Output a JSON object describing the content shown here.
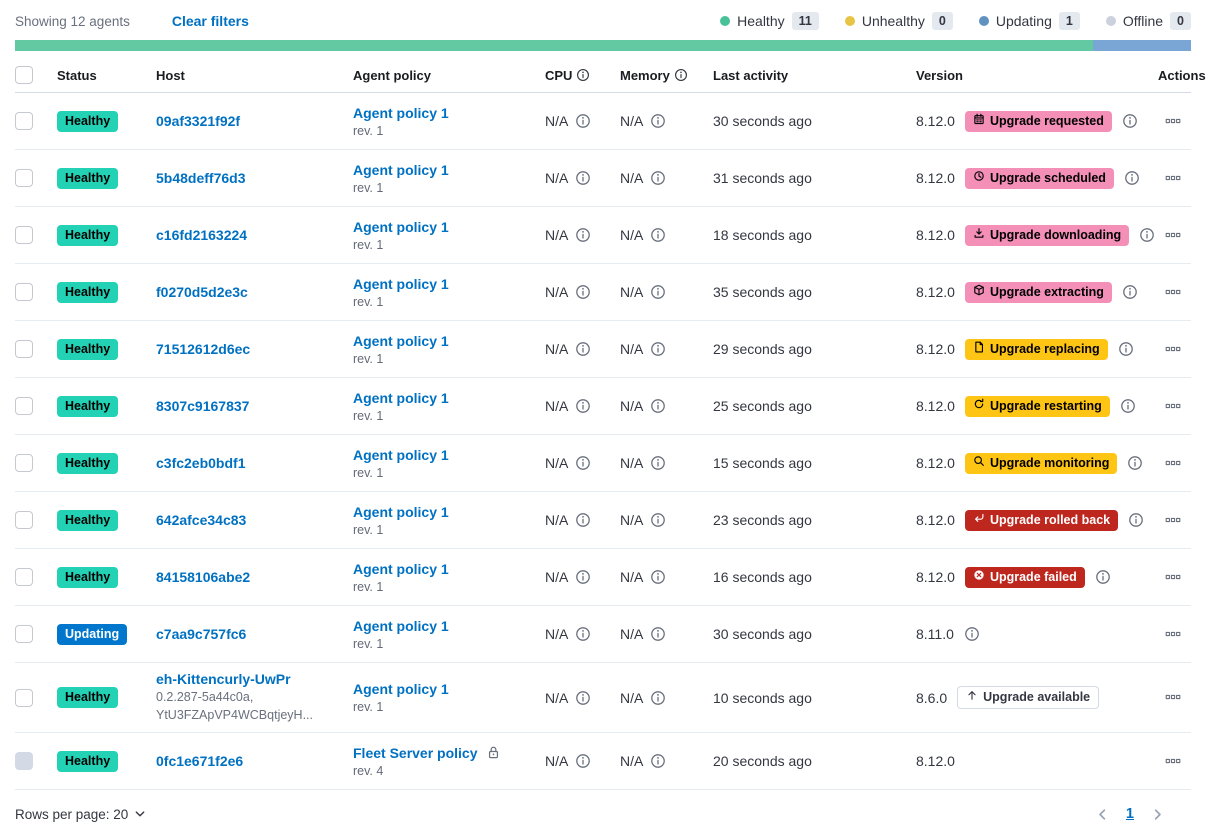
{
  "toolbar": {
    "showing_text": "Showing 12 agents",
    "clear_filters_label": "Clear filters",
    "legend": [
      {
        "label": "Healthy",
        "count": "11",
        "color": "#48c199"
      },
      {
        "label": "Unhealthy",
        "count": "0",
        "color": "#e8c444"
      },
      {
        "label": "Updating",
        "count": "1",
        "color": "#6092c0"
      },
      {
        "label": "Offline",
        "count": "0",
        "color": "#cbd1dd"
      }
    ]
  },
  "health_bar": {
    "segments": [
      {
        "status": "healthy",
        "color": "#62c9a2",
        "fraction": 11
      },
      {
        "status": "updating",
        "color": "#79a6d4",
        "fraction": 1
      }
    ]
  },
  "table": {
    "columns": [
      {
        "label": "Status"
      },
      {
        "label": "Host"
      },
      {
        "label": "Agent policy"
      },
      {
        "label": "CPU",
        "info_icon": true
      },
      {
        "label": "Memory",
        "info_icon": true
      },
      {
        "label": "Last activity"
      },
      {
        "label": "Version"
      },
      {
        "label": "Actions"
      }
    ],
    "rows": [
      {
        "status": {
          "label": "Healthy",
          "type": "healthy"
        },
        "checkbox_disabled": false,
        "host": {
          "name": "09af3321f92f",
          "sub_lines": []
        },
        "policy": {
          "name": "Agent policy 1",
          "revision": "rev. 1",
          "locked": false
        },
        "cpu": "N/A",
        "memory": "N/A",
        "last_activity": "30 seconds ago",
        "version": "8.12.0",
        "upgrade": {
          "label": "Upgrade requested",
          "icon": "calendar-icon",
          "type": "accent"
        },
        "version_info_icon": true
      },
      {
        "status": {
          "label": "Healthy",
          "type": "healthy"
        },
        "checkbox_disabled": false,
        "host": {
          "name": "5b48deff76d3",
          "sub_lines": []
        },
        "policy": {
          "name": "Agent policy 1",
          "revision": "rev. 1",
          "locked": false
        },
        "cpu": "N/A",
        "memory": "N/A",
        "last_activity": "31 seconds ago",
        "version": "8.12.0",
        "upgrade": {
          "label": "Upgrade scheduled",
          "icon": "clock-icon",
          "type": "accent"
        },
        "version_info_icon": true
      },
      {
        "status": {
          "label": "Healthy",
          "type": "healthy"
        },
        "checkbox_disabled": false,
        "host": {
          "name": "c16fd2163224",
          "sub_lines": []
        },
        "policy": {
          "name": "Agent policy 1",
          "revision": "rev. 1",
          "locked": false
        },
        "cpu": "N/A",
        "memory": "N/A",
        "last_activity": "18 seconds ago",
        "version": "8.12.0",
        "upgrade": {
          "label": "Upgrade downloading",
          "icon": "download-icon",
          "type": "accent"
        },
        "version_info_icon": true
      },
      {
        "status": {
          "label": "Healthy",
          "type": "healthy"
        },
        "checkbox_disabled": false,
        "host": {
          "name": "f0270d5d2e3c",
          "sub_lines": []
        },
        "policy": {
          "name": "Agent policy 1",
          "revision": "rev. 1",
          "locked": false
        },
        "cpu": "N/A",
        "memory": "N/A",
        "last_activity": "35 seconds ago",
        "version": "8.12.0",
        "upgrade": {
          "label": "Upgrade extracting",
          "icon": "package-icon",
          "type": "accent"
        },
        "version_info_icon": true
      },
      {
        "status": {
          "label": "Healthy",
          "type": "healthy"
        },
        "checkbox_disabled": false,
        "host": {
          "name": "71512612d6ec",
          "sub_lines": []
        },
        "policy": {
          "name": "Agent policy 1",
          "revision": "rev. 1",
          "locked": false
        },
        "cpu": "N/A",
        "memory": "N/A",
        "last_activity": "29 seconds ago",
        "version": "8.12.0",
        "upgrade": {
          "label": "Upgrade replacing",
          "icon": "document-icon",
          "type": "warning"
        },
        "version_info_icon": true
      },
      {
        "status": {
          "label": "Healthy",
          "type": "healthy"
        },
        "checkbox_disabled": false,
        "host": {
          "name": "8307c9167837",
          "sub_lines": []
        },
        "policy": {
          "name": "Agent policy 1",
          "revision": "rev. 1",
          "locked": false
        },
        "cpu": "N/A",
        "memory": "N/A",
        "last_activity": "25 seconds ago",
        "version": "8.12.0",
        "upgrade": {
          "label": "Upgrade restarting",
          "icon": "refresh-icon",
          "type": "warning"
        },
        "version_info_icon": true
      },
      {
        "status": {
          "label": "Healthy",
          "type": "healthy"
        },
        "checkbox_disabled": false,
        "host": {
          "name": "c3fc2eb0bdf1",
          "sub_lines": []
        },
        "policy": {
          "name": "Agent policy 1",
          "revision": "rev. 1",
          "locked": false
        },
        "cpu": "N/A",
        "memory": "N/A",
        "last_activity": "15 seconds ago",
        "version": "8.12.0",
        "upgrade": {
          "label": "Upgrade monitoring",
          "icon": "inspect-icon",
          "type": "warning"
        },
        "version_info_icon": true
      },
      {
        "status": {
          "label": "Healthy",
          "type": "healthy"
        },
        "checkbox_disabled": false,
        "host": {
          "name": "642afce34c83",
          "sub_lines": []
        },
        "policy": {
          "name": "Agent policy 1",
          "revision": "rev. 1",
          "locked": false
        },
        "cpu": "N/A",
        "memory": "N/A",
        "last_activity": "23 seconds ago",
        "version": "8.12.0",
        "upgrade": {
          "label": "Upgrade rolled back",
          "icon": "return-icon",
          "type": "danger"
        },
        "version_info_icon": true
      },
      {
        "status": {
          "label": "Healthy",
          "type": "healthy"
        },
        "checkbox_disabled": false,
        "host": {
          "name": "84158106abe2",
          "sub_lines": []
        },
        "policy": {
          "name": "Agent policy 1",
          "revision": "rev. 1",
          "locked": false
        },
        "cpu": "N/A",
        "memory": "N/A",
        "last_activity": "16 seconds ago",
        "version": "8.12.0",
        "upgrade": {
          "label": "Upgrade failed",
          "icon": "error-icon",
          "type": "danger"
        },
        "version_info_icon": true
      },
      {
        "status": {
          "label": "Updating",
          "type": "updating"
        },
        "checkbox_disabled": false,
        "host": {
          "name": "c7aa9c757fc6",
          "sub_lines": []
        },
        "policy": {
          "name": "Agent policy 1",
          "revision": "rev. 1",
          "locked": false
        },
        "cpu": "N/A",
        "memory": "N/A",
        "last_activity": "30 seconds ago",
        "version": "8.11.0",
        "upgrade": null,
        "version_info_icon": true
      },
      {
        "status": {
          "label": "Healthy",
          "type": "healthy"
        },
        "checkbox_disabled": false,
        "host": {
          "name": "eh-Kittencurly-UwPr",
          "sub_lines": [
            "0.2.287-5a44c0a,",
            "YtU3FZApVP4WCBqtjeyH..."
          ]
        },
        "policy": {
          "name": "Agent policy 1",
          "revision": "rev. 1",
          "locked": false
        },
        "cpu": "N/A",
        "memory": "N/A",
        "last_activity": "10 seconds ago",
        "version": "8.6.0",
        "upgrade": {
          "label": "Upgrade available",
          "icon": "arrow-up-icon",
          "type": "hollow"
        },
        "version_info_icon": false
      },
      {
        "status": {
          "label": "Healthy",
          "type": "healthy"
        },
        "checkbox_disabled": true,
        "host": {
          "name": "0fc1e671f2e6",
          "sub_lines": []
        },
        "policy": {
          "name": "Fleet Server policy",
          "revision": "rev. 4",
          "locked": true
        },
        "cpu": "N/A",
        "memory": "N/A",
        "last_activity": "20 seconds ago",
        "version": "8.12.0",
        "upgrade": null,
        "version_info_icon": false
      }
    ]
  },
  "footer": {
    "rows_per_page_label": "Rows per page: 20",
    "page_number": "1"
  },
  "colors": {
    "link": "#0071c2",
    "healthy_badge": "#23d2b5",
    "updating_badge": "#0077cc",
    "accent_badge": "#f48fb8",
    "warning_badge": "#fec514",
    "danger_badge": "#bd271e"
  }
}
